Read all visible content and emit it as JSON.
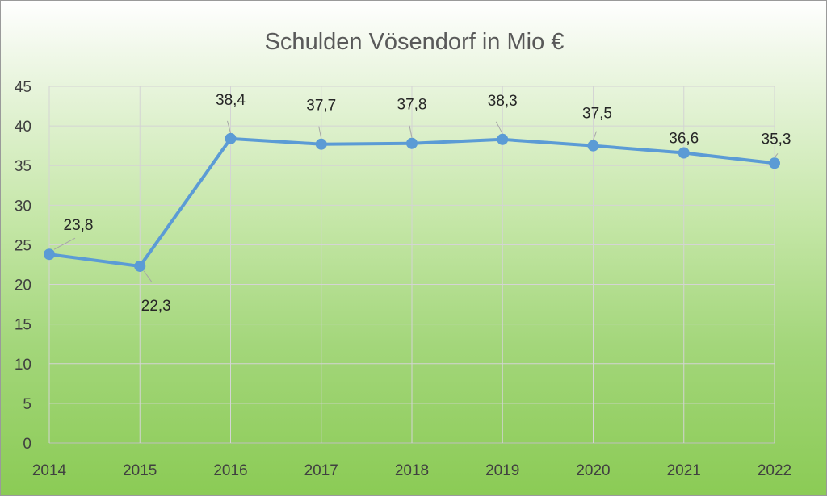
{
  "chart_data": {
    "type": "line",
    "title": "Schulden Vösendorf in Mio €",
    "xlabel": "",
    "ylabel": "",
    "categories": [
      "2014",
      "2015",
      "2016",
      "2017",
      "2018",
      "2019",
      "2020",
      "2021",
      "2022"
    ],
    "series": [
      {
        "values": [
          23.8,
          22.3,
          38.4,
          37.7,
          37.8,
          38.3,
          37.5,
          36.6,
          35.3
        ],
        "labels": [
          "23,8",
          "22,3",
          "38,4",
          "37,7",
          "37,8",
          "38,3",
          "37,5",
          "36,6",
          "35,3"
        ],
        "color": "#5b9bd5"
      }
    ],
    "ylim": [
      0,
      45
    ],
    "yticks": [
      "0",
      "5",
      "10",
      "15",
      "20",
      "25",
      "30",
      "35",
      "40",
      "45"
    ],
    "grid": true,
    "markers": true,
    "background": "green-gradient"
  }
}
